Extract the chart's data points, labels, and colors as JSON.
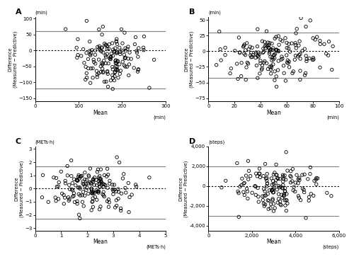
{
  "panels": [
    {
      "label": "A",
      "xlabel": "Mean",
      "xlabel_unit": "(min)",
      "ylabel_unit": "(min)",
      "ylabel": "Difference\n(Measured − Predictive)",
      "xlim": [
        0,
        300
      ],
      "ylim": [
        -160,
        105
      ],
      "xticks": [
        0,
        100,
        200,
        300
      ],
      "yticks": [
        -150,
        -100,
        -50,
        0,
        50,
        100
      ],
      "hlines": [
        60,
        -120
      ],
      "dotted_line": 0,
      "mean_x": 175,
      "mean_y": -30,
      "x_spread": 40,
      "y_spread": 45,
      "x_skew": 0.0,
      "n_points": 160,
      "seed": 42,
      "use_comma": false
    },
    {
      "label": "B",
      "xlabel": "Mean",
      "xlabel_unit": "(min)",
      "ylabel_unit": "(min)",
      "ylabel": "Difference\n(Measured − Predictive)",
      "xlim": [
        0,
        100
      ],
      "ylim": [
        -80,
        55
      ],
      "xticks": [
        0,
        20,
        40,
        60,
        80,
        100
      ],
      "yticks": [
        -75,
        -50,
        -25,
        0,
        25,
        50
      ],
      "hlines": [
        30,
        -43
      ],
      "dotted_line": 0,
      "mean_x": 50,
      "mean_y": -5,
      "x_spread": 20,
      "y_spread": 20,
      "n_points": 175,
      "seed": 43,
      "use_comma": false
    },
    {
      "label": "C",
      "xlabel": "Mean",
      "xlabel_unit": "(METs·h)",
      "ylabel_unit": "(METs·h)",
      "ylabel": "Difference\n(Measured − Predictive)",
      "xlim": [
        0,
        5
      ],
      "ylim": [
        -3.2,
        3.2
      ],
      "xticks": [
        0,
        1,
        2,
        3,
        4,
        5
      ],
      "yticks": [
        -3,
        -2,
        -1,
        0,
        1,
        2,
        3
      ],
      "hlines": [
        1.7,
        -2.3
      ],
      "dotted_line": 0,
      "mean_x": 2.2,
      "mean_y": 0.0,
      "x_spread": 0.75,
      "y_spread": 0.85,
      "n_points": 175,
      "seed": 44,
      "use_comma": false
    },
    {
      "label": "D",
      "xlabel": "Mean",
      "xlabel_unit": "(steps)",
      "ylabel_unit": "(steps)",
      "ylabel": "Difference\n(Measured − Predictive)",
      "xlim": [
        0,
        6000
      ],
      "ylim": [
        -4500,
        4000
      ],
      "xticks": [
        0,
        2000,
        4000,
        6000
      ],
      "yticks": [
        -4000,
        -2000,
        0,
        2000,
        4000
      ],
      "hlines": [
        2000,
        -3000
      ],
      "dotted_line": 0,
      "mean_x": 3200,
      "mean_y": -300,
      "x_spread": 1000,
      "y_spread": 1200,
      "n_points": 160,
      "seed": 45,
      "use_comma": true
    }
  ]
}
